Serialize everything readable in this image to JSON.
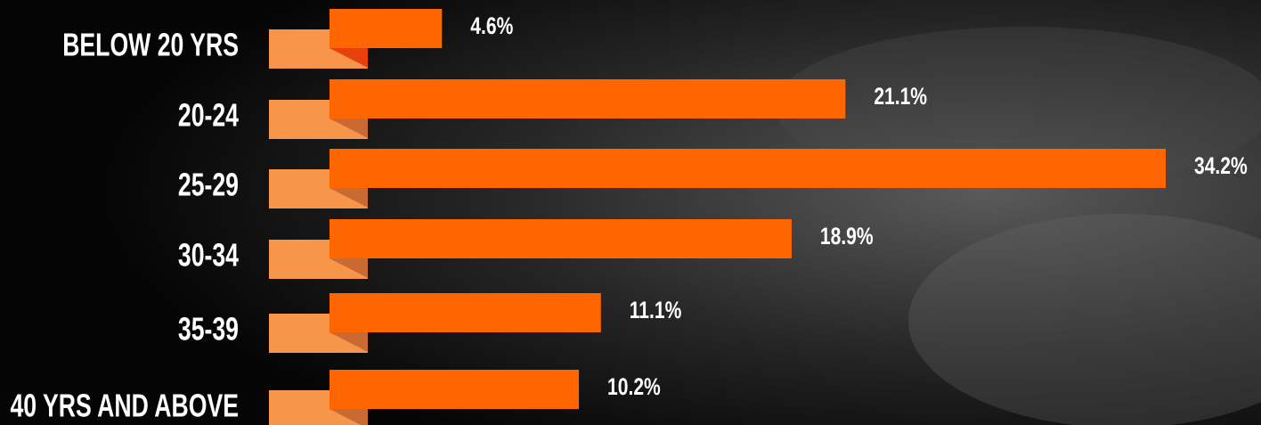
{
  "chart_data": {
    "type": "bar",
    "orientation": "horizontal",
    "categories": [
      "BELOW 20 YRS",
      "20-24",
      "25-29",
      "30-34",
      "35-39",
      "40 YRS AND ABOVE"
    ],
    "values": [
      4.6,
      21.1,
      34.2,
      18.9,
      11.1,
      10.2
    ],
    "value_labels": [
      "4.6%",
      "21.1%",
      "34.2%",
      "18.9%",
      "11.1%",
      "10.2%"
    ],
    "color": "#ff6600"
  }
}
